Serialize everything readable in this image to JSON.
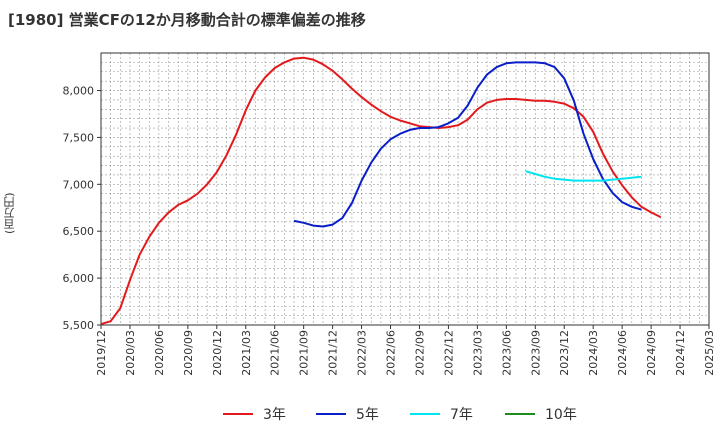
{
  "title": "[1980]  営業CFの12か月移動合計の標準偏差の推移",
  "chart_data": {
    "type": "line",
    "title": "[1980]  営業CFの12か月移動合計の標準偏差の推移",
    "ylabel": "(百万円)",
    "xlabel": "",
    "ylim": [
      5500,
      8400
    ],
    "y_ticks": [
      5500,
      6000,
      6500,
      7000,
      7500,
      8000
    ],
    "y_tick_labels": [
      "5,500",
      "6,000",
      "6,500",
      "7,000",
      "7,500",
      "8,000"
    ],
    "x_range": [
      "2019-12",
      "2025-03"
    ],
    "x_tick_labels": [
      "2019/12",
      "2020/03",
      "2020/06",
      "2020/09",
      "2020/12",
      "2021/03",
      "2021/06",
      "2021/09",
      "2021/12",
      "2022/03",
      "2022/06",
      "2022/09",
      "2022/12",
      "2023/03",
      "2023/06",
      "2023/09",
      "2023/12",
      "2024/03",
      "2024/06",
      "2024/09",
      "2024/12",
      "2025/03"
    ],
    "grid": true,
    "legend_position": "bottom",
    "series": [
      {
        "name": "3年",
        "color": "#e31a1c",
        "start": "2019-12",
        "values": [
          5510,
          5540,
          5680,
          5980,
          6250,
          6440,
          6590,
          6700,
          6780,
          6830,
          6900,
          7000,
          7130,
          7310,
          7530,
          7790,
          8000,
          8140,
          8240,
          8300,
          8340,
          8350,
          8330,
          8280,
          8210,
          8120,
          8020,
          7930,
          7850,
          7780,
          7720,
          7680,
          7650,
          7620,
          7610,
          7600,
          7610,
          7630,
          7690,
          7800,
          7870,
          7900,
          7910,
          7910,
          7900,
          7890,
          7890,
          7880,
          7860,
          7810,
          7720,
          7560,
          7330,
          7140,
          6990,
          6860,
          6760,
          6700,
          6650
        ]
      },
      {
        "name": "5年",
        "color": "#0a1fc8",
        "start": "2021-08",
        "values": [
          6610,
          6590,
          6560,
          6550,
          6570,
          6640,
          6800,
          7040,
          7230,
          7380,
          7480,
          7540,
          7580,
          7600,
          7600,
          7610,
          7650,
          7710,
          7840,
          8030,
          8170,
          8250,
          8290,
          8300,
          8300,
          8300,
          8290,
          8250,
          8130,
          7890,
          7540,
          7270,
          7060,
          6910,
          6810,
          6760,
          6730
        ]
      },
      {
        "name": "7年",
        "color": "#00e5f0",
        "start": "2023-08",
        "values": [
          7140,
          7110,
          7080,
          7060,
          7050,
          7040,
          7040,
          7040,
          7040,
          7050,
          7060,
          7070,
          7080
        ]
      },
      {
        "name": "10年",
        "color": "#1e8c1e",
        "start": null,
        "values": []
      }
    ]
  }
}
